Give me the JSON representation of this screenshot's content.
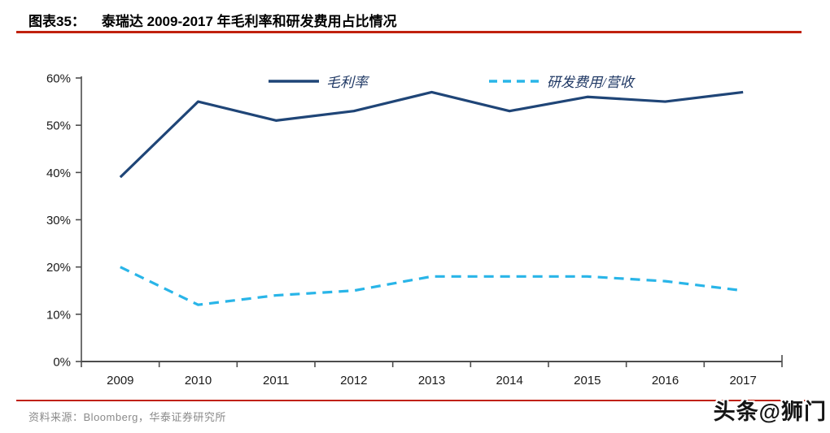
{
  "header": {
    "label": "图表35：",
    "title": "泰瑞达 2009-2017 年毛利率和研发费用占比情况"
  },
  "footer": {
    "source_label": "资料来源：",
    "source_text": "Bloomberg，华泰证券研究所"
  },
  "watermark": "头条@狮门",
  "colors": {
    "accent_red": "#c0210e",
    "axis": "#4d4d4d",
    "tick_text": "#1a1a1a",
    "legend_text": "#1f3864",
    "footer_text": "#8a8a8a"
  },
  "chart_data": {
    "type": "line",
    "title": "泰瑞达 2009-2017 年毛利率和研发费用占比情况",
    "categories": [
      "2009",
      "2010",
      "2011",
      "2012",
      "2013",
      "2014",
      "2015",
      "2016",
      "2017"
    ],
    "series": [
      {
        "name": "毛利率",
        "style": "solid",
        "color": "#1f4577",
        "values": [
          39,
          55,
          51,
          53,
          57,
          53,
          56,
          55,
          57
        ]
      },
      {
        "name": "研发费用/营收",
        "style": "dashed",
        "color": "#29b5e8",
        "values": [
          20,
          12,
          14,
          15,
          18,
          18,
          18,
          17,
          15
        ]
      }
    ],
    "xlabel": "",
    "ylabel": "",
    "ylim": [
      0,
      60
    ],
    "ytick_step": 10,
    "ytick_suffix": "%",
    "legend_position": "top-inside",
    "grid": false
  }
}
